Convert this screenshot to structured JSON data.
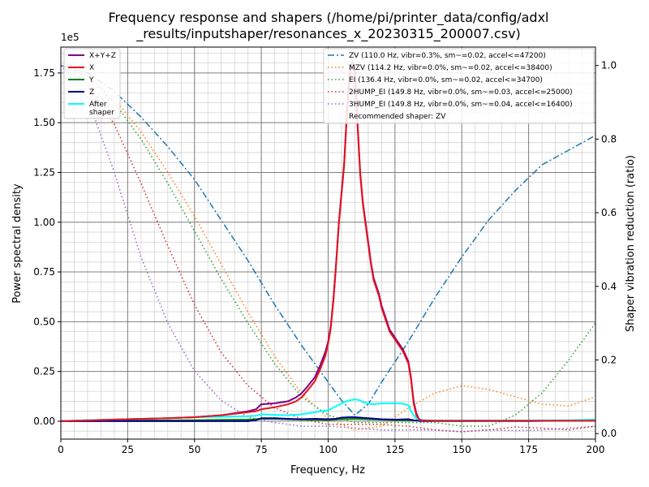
{
  "chart_data": {
    "type": "line",
    "title_line1": "Frequency response and shapers (/home/pi/printer_data/config/adxl",
    "title_line2": "_results/inputshaper/resonances_x_20230315_200007.csv)",
    "xlabel": "Frequency, Hz",
    "ylabel": "Power spectral density",
    "y2label": "Shaper vibration reduction (ratio)",
    "y_offset_label": "1e5",
    "xlim": [
      0,
      200
    ],
    "ylim": [
      -0.09,
      1.88
    ],
    "y2lim": [
      -0.015,
      1.05
    ],
    "x_ticks": [
      0,
      25,
      50,
      75,
      100,
      125,
      150,
      175,
      200
    ],
    "y_ticks": [
      0.0,
      0.25,
      0.5,
      0.75,
      1.0,
      1.25,
      1.5,
      1.75
    ],
    "y_tick_labels": [
      "0.00",
      "0.25",
      "0.50",
      "0.75",
      "1.00",
      "1.25",
      "1.50",
      "1.75"
    ],
    "y2_ticks": [
      0.0,
      0.2,
      0.4,
      0.6,
      0.8,
      1.0
    ],
    "y2_tick_labels": [
      "0.0",
      "0.2",
      "0.4",
      "0.6",
      "0.8",
      "1.0"
    ],
    "grid": true,
    "legend_psd_position": "upper-left",
    "legend_shaper_position": "upper-right",
    "recommended_text": "Recommended shaper: ZV",
    "psd_series": [
      {
        "name": "X+Y+Z",
        "color": "#800080",
        "x": [
          0,
          10,
          25,
          40,
          50,
          60,
          70,
          73,
          75,
          80,
          85,
          88,
          90,
          92,
          95,
          97,
          99,
          100,
          101,
          102,
          103,
          104,
          105,
          106,
          107,
          108,
          109,
          110,
          111,
          112,
          113,
          114,
          115,
          116,
          117,
          118,
          119,
          120,
          121,
          122,
          123,
          125,
          127,
          128,
          129,
          130,
          131,
          132,
          133,
          134,
          135,
          140,
          150,
          175,
          200
        ],
        "y": [
          0,
          0.005,
          0.01,
          0.015,
          0.02,
          0.03,
          0.05,
          0.06,
          0.085,
          0.09,
          0.1,
          0.12,
          0.14,
          0.17,
          0.22,
          0.28,
          0.35,
          0.4,
          0.48,
          0.62,
          0.8,
          1.0,
          1.15,
          1.3,
          1.55,
          1.75,
          1.8,
          1.76,
          1.5,
          1.25,
          1.1,
          1.0,
          0.9,
          0.8,
          0.72,
          0.68,
          0.64,
          0.58,
          0.54,
          0.5,
          0.46,
          0.42,
          0.38,
          0.36,
          0.33,
          0.3,
          0.22,
          0.1,
          0.04,
          0.01,
          0.005,
          0.002,
          0.002,
          0.002,
          0.002
        ]
      },
      {
        "name": "X",
        "color": "#e8101d",
        "x": [
          0,
          10,
          25,
          40,
          50,
          60,
          70,
          73,
          75,
          80,
          85,
          88,
          90,
          92,
          95,
          97,
          99,
          100,
          101,
          102,
          103,
          104,
          105,
          106,
          107,
          108,
          109,
          110,
          111,
          112,
          113,
          114,
          115,
          116,
          117,
          118,
          119,
          120,
          121,
          122,
          123,
          125,
          127,
          128,
          129,
          130,
          131,
          132,
          133,
          134,
          135,
          140,
          150,
          175,
          200
        ],
        "y": [
          0,
          0.004,
          0.01,
          0.015,
          0.02,
          0.03,
          0.045,
          0.05,
          0.06,
          0.07,
          0.085,
          0.1,
          0.12,
          0.15,
          0.2,
          0.26,
          0.33,
          0.39,
          0.47,
          0.61,
          0.79,
          0.99,
          1.14,
          1.29,
          1.54,
          1.74,
          1.79,
          1.75,
          1.49,
          1.24,
          1.09,
          0.99,
          0.89,
          0.79,
          0.71,
          0.67,
          0.63,
          0.57,
          0.53,
          0.49,
          0.45,
          0.41,
          0.37,
          0.35,
          0.32,
          0.29,
          0.21,
          0.09,
          0.03,
          0.01,
          0.004,
          0.002,
          0.002,
          0.002,
          0.002
        ]
      },
      {
        "name": "Y",
        "color": "#008000",
        "x": [
          0,
          25,
          50,
          70,
          75,
          80,
          90,
          100,
          105,
          110,
          115,
          120,
          125,
          130,
          135,
          150,
          175,
          200
        ],
        "y": [
          0,
          0.003,
          0.005,
          0.008,
          0.012,
          0.012,
          0.008,
          0.006,
          0.01,
          0.012,
          0.01,
          0.008,
          0.006,
          0.005,
          0.003,
          0.002,
          0.002,
          0.002
        ]
      },
      {
        "name": "Z",
        "color": "#00008b",
        "x": [
          0,
          25,
          50,
          70,
          73,
          75,
          80,
          85,
          90,
          95,
          100,
          103,
          105,
          108,
          110,
          112,
          115,
          120,
          125,
          130,
          132,
          135,
          150,
          175,
          200
        ],
        "y": [
          0,
          0,
          0,
          0,
          0.005,
          0.015,
          0.015,
          0.012,
          0.01,
          0.012,
          0.01,
          0.012,
          0.018,
          0.02,
          0.02,
          0.018,
          0.015,
          0.01,
          0.008,
          0.01,
          0.005,
          0.001,
          0.001,
          0.001,
          0.005
        ]
      },
      {
        "name": "After\nshaper",
        "color": "#00ffff",
        "x": [
          0,
          10,
          25,
          40,
          50,
          60,
          70,
          73,
          75,
          80,
          85,
          90,
          95,
          100,
          103,
          106,
          108,
          110,
          112,
          113,
          115,
          117,
          120,
          123,
          125,
          128,
          130,
          131,
          132,
          133,
          134,
          136,
          140,
          150,
          160,
          175,
          190,
          200
        ],
        "y": [
          0,
          0.005,
          0.01,
          0.015,
          0.02,
          0.022,
          0.025,
          0.027,
          0.035,
          0.032,
          0.03,
          0.035,
          0.045,
          0.055,
          0.075,
          0.095,
          0.105,
          0.11,
          0.105,
          0.095,
          0.09,
          0.085,
          0.09,
          0.09,
          0.09,
          0.088,
          0.08,
          0.05,
          0.03,
          0.015,
          0.008,
          0.005,
          0.004,
          0.004,
          0.003,
          0.004,
          0.005,
          0.008
        ]
      }
    ],
    "shaper_series": [
      {
        "name": "ZV (110.0 Hz, vibr=0.3%, sm~=0.02, accel<=47200)",
        "color": "#1f77b4",
        "dash": "dashdot",
        "x": [
          0,
          10,
          20,
          30,
          40,
          50,
          60,
          70,
          80,
          90,
          100,
          105,
          110,
          115,
          120,
          130,
          140,
          150,
          160,
          170,
          180,
          190,
          200
        ],
        "y": [
          1.0,
          0.98,
          0.93,
          0.86,
          0.78,
          0.69,
          0.58,
          0.47,
          0.35,
          0.24,
          0.14,
          0.09,
          0.05,
          0.08,
          0.14,
          0.25,
          0.37,
          0.48,
          0.58,
          0.66,
          0.73,
          0.77,
          0.81
        ]
      },
      {
        "name": "MZV (114.2 Hz, vibr=0.0%, sm~=0.02, accel<=38400)",
        "color": "#ff7f0e",
        "dash": "dot",
        "x": [
          0,
          10,
          20,
          30,
          40,
          50,
          60,
          70,
          80,
          90,
          100,
          110,
          120,
          130,
          140,
          150,
          160,
          170,
          180,
          190,
          200
        ],
        "y": [
          1.0,
          0.97,
          0.91,
          0.82,
          0.71,
          0.59,
          0.46,
          0.33,
          0.21,
          0.11,
          0.04,
          0.01,
          0.02,
          0.07,
          0.11,
          0.13,
          0.12,
          0.1,
          0.08,
          0.075,
          0.1
        ]
      },
      {
        "name": "EI (136.4 Hz, vibr=0.0%, sm~=0.02, accel<=34700)",
        "color": "#2ca02c",
        "dash": "dot",
        "x": [
          0,
          10,
          20,
          30,
          40,
          50,
          60,
          70,
          80,
          90,
          100,
          110,
          120,
          130,
          140,
          150,
          160,
          170,
          180,
          190,
          200
        ],
        "y": [
          1.0,
          0.97,
          0.9,
          0.8,
          0.68,
          0.55,
          0.42,
          0.3,
          0.19,
          0.1,
          0.05,
          0.03,
          0.03,
          0.03,
          0.03,
          0.02,
          0.02,
          0.05,
          0.11,
          0.2,
          0.3
        ]
      },
      {
        "name": "2HUMP_EI (149.8 Hz, vibr=0.0%, sm~=0.03, accel<=25000)",
        "color": "#d62728",
        "dash": "dot",
        "x": [
          0,
          10,
          20,
          30,
          40,
          50,
          60,
          70,
          80,
          90,
          100,
          110,
          120,
          130,
          140,
          150,
          160,
          170,
          180,
          190,
          200
        ],
        "y": [
          1.0,
          0.95,
          0.84,
          0.68,
          0.51,
          0.35,
          0.22,
          0.13,
          0.07,
          0.04,
          0.025,
          0.025,
          0.025,
          0.02,
          0.01,
          0.005,
          0.01,
          0.018,
          0.015,
          0.01,
          0.02
        ]
      },
      {
        "name": "3HUMP_EI (149.8 Hz, vibr=0.0%, sm~=0.04, accel<=16400)",
        "color": "#9467bd",
        "dash": "dot",
        "x": [
          0,
          10,
          20,
          30,
          40,
          50,
          60,
          70,
          80,
          90,
          100,
          110,
          120,
          130,
          140,
          150,
          160,
          170,
          180,
          190,
          200
        ],
        "y": [
          1.0,
          0.91,
          0.71,
          0.48,
          0.3,
          0.17,
          0.09,
          0.045,
          0.03,
          0.02,
          0.02,
          0.015,
          0.01,
          0.01,
          0.01,
          0.005,
          0.01,
          0.008,
          0.01,
          0.015,
          0.02
        ]
      }
    ]
  }
}
